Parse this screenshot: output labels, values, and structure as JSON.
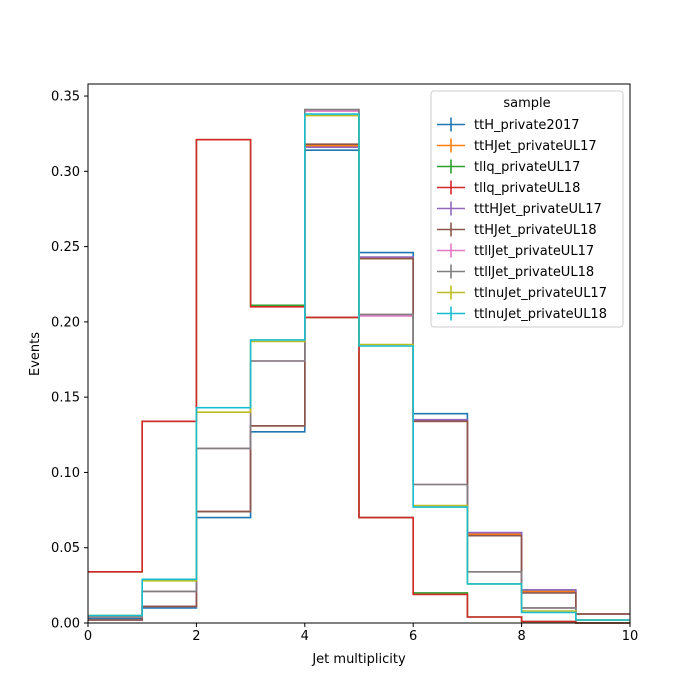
{
  "chart_data": {
    "type": "histogram-step",
    "xlabel": "Jet multiplicity",
    "ylabel": "Events",
    "xlim": [
      0,
      10
    ],
    "ylim": [
      0,
      0.358
    ],
    "x_ticks": [
      "0",
      "2",
      "4",
      "6",
      "8",
      "10"
    ],
    "y_ticks": [
      "0.00",
      "0.05",
      "0.10",
      "0.15",
      "0.20",
      "0.25",
      "0.30",
      "0.35"
    ],
    "bin_edges": [
      0,
      1,
      2,
      3,
      4,
      5,
      6,
      7,
      8,
      9,
      10
    ],
    "legend": {
      "title": "sample",
      "position": "top-right"
    },
    "series": [
      {
        "name": "ttH_private2017",
        "color": "#1f77b4",
        "values": [
          0.003,
          0.01,
          0.07,
          0.127,
          0.314,
          0.246,
          0.139,
          0.06,
          0.022,
          0.006
        ]
      },
      {
        "name": "ttHJet_privateUL17",
        "color": "#ff7f0e",
        "values": [
          0.002,
          0.011,
          0.074,
          0.131,
          0.317,
          0.242,
          0.134,
          0.059,
          0.021,
          0.006
        ]
      },
      {
        "name": "tllq_privateUL17",
        "color": "#2ca02c",
        "values": [
          0.034,
          0.134,
          0.321,
          0.211,
          0.203,
          0.07,
          0.02,
          0.004,
          0.001,
          0.0
        ]
      },
      {
        "name": "tllq_privateUL18",
        "color": "#d62728",
        "values": [
          0.034,
          0.134,
          0.321,
          0.21,
          0.203,
          0.07,
          0.019,
          0.004,
          0.001,
          0.0
        ]
      },
      {
        "name": "tttHJet_privateUL17",
        "color": "#9467bd",
        "values": [
          0.002,
          0.011,
          0.074,
          0.131,
          0.316,
          0.243,
          0.135,
          0.06,
          0.022,
          0.006
        ]
      },
      {
        "name": "ttHJet_privateUL18",
        "color": "#8c564b",
        "values": [
          0.002,
          0.011,
          0.074,
          0.131,
          0.318,
          0.242,
          0.134,
          0.058,
          0.02,
          0.006
        ]
      },
      {
        "name": "ttllJet_privateUL17",
        "color": "#e377c2",
        "values": [
          0.004,
          0.021,
          0.116,
          0.174,
          0.34,
          0.204,
          0.092,
          0.034,
          0.01,
          0.002
        ]
      },
      {
        "name": "ttllJet_privateUL18",
        "color": "#7f7f7f",
        "values": [
          0.004,
          0.021,
          0.116,
          0.174,
          0.341,
          0.205,
          0.092,
          0.034,
          0.01,
          0.002
        ]
      },
      {
        "name": "ttlnuJet_privateUL17",
        "color": "#bcbd22",
        "values": [
          0.005,
          0.028,
          0.14,
          0.187,
          0.337,
          0.185,
          0.078,
          0.026,
          0.008,
          0.002
        ]
      },
      {
        "name": "ttlnuJet_privateUL18",
        "color": "#17becf",
        "values": [
          0.005,
          0.029,
          0.143,
          0.188,
          0.338,
          0.184,
          0.077,
          0.026,
          0.007,
          0.002
        ]
      }
    ]
  }
}
